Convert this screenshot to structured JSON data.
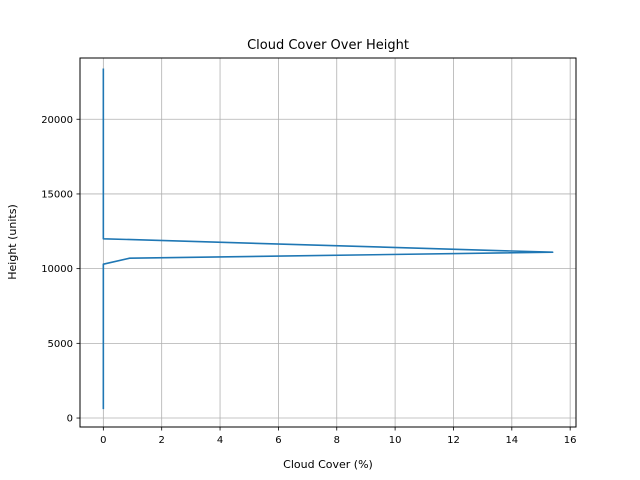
{
  "chart_data": {
    "type": "line",
    "title": "Cloud Cover Over Height",
    "xlabel": "Cloud Cover (%)",
    "ylabel": "Height (units)",
    "xlim": [
      -0.8,
      16.2
    ],
    "ylim": [
      -600,
      24100
    ],
    "xticks": [
      0,
      2,
      4,
      6,
      8,
      10,
      12,
      14,
      16
    ],
    "xtick_labels": [
      "0",
      "2",
      "4",
      "6",
      "8",
      "10",
      "12",
      "14",
      "16"
    ],
    "yticks": [
      0,
      5000,
      10000,
      15000,
      20000
    ],
    "ytick_labels": [
      "0",
      "5000",
      "10000",
      "15000",
      "20000"
    ],
    "grid": true,
    "color": "#1f77b4",
    "series": [
      {
        "x": [
          0,
          0,
          0,
          0.9,
          15.4,
          0,
          0
        ],
        "y": [
          600,
          5000,
          10300,
          10700,
          11100,
          12000,
          23400
        ]
      }
    ]
  }
}
